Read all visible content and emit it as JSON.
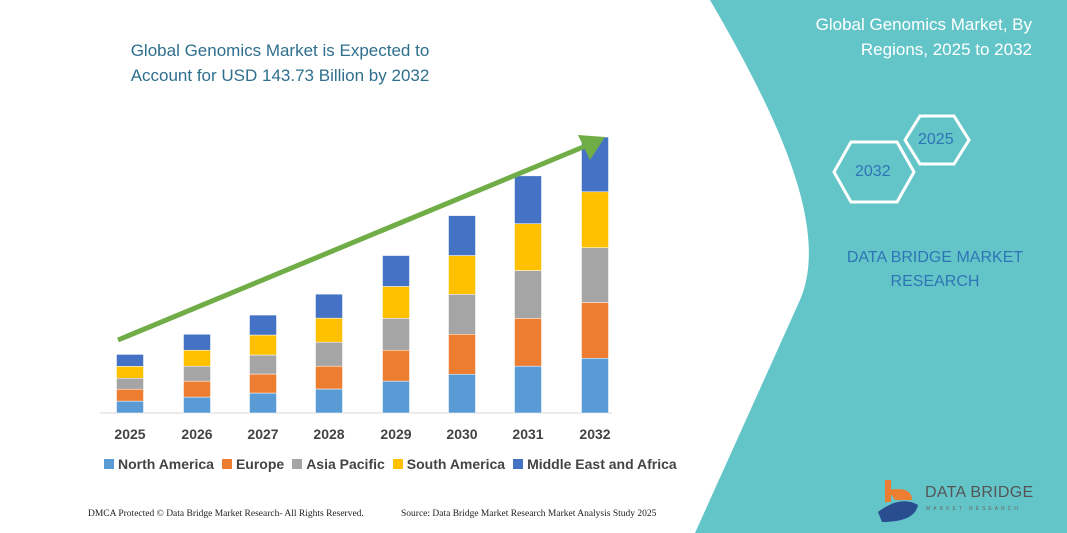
{
  "title": "Global Genomics Market is Expected to Account for USD 143.73 Billion by 2032",
  "side_panel": {
    "title": "Global Genomics Market, By Regions, 2025 to 2032",
    "hex_start": "2025",
    "hex_end": "2032",
    "brand": "DATA BRIDGE MARKET RESEARCH",
    "color": "#64c5c9"
  },
  "logo": {
    "name": "DATA BRIDGE",
    "sub": "MARKET RESEARCH"
  },
  "footer": {
    "left": "DMCA Protected © Data Bridge Market Research-  All Rights Reserved.",
    "right": "Source: Data Bridge Market Research  Market Analysis Study 2025"
  },
  "chart_data": {
    "type": "bar",
    "stacked": true,
    "title": "Global Genomics Market is Expected to Account for USD 143.73 Billion by 2032",
    "xlabel": "",
    "ylabel": "",
    "categories": [
      "2025",
      "2026",
      "2027",
      "2028",
      "2029",
      "2030",
      "2031",
      "2032"
    ],
    "ylim": [
      0,
      143.73
    ],
    "grid": false,
    "legend_position": "bottom",
    "trend_arrow": true,
    "series": [
      {
        "name": "North America",
        "color": "#5b9bd5",
        "values": [
          6.2,
          8.3,
          10.4,
          12.5,
          16.6,
          20.2,
          24.4,
          28.5
        ]
      },
      {
        "name": "Europe",
        "color": "#ed7d31",
        "values": [
          6.2,
          8.3,
          9.9,
          11.9,
          16.1,
          20.8,
          24.9,
          29.1
        ]
      },
      {
        "name": "Asia Pacific",
        "color": "#a5a5a5",
        "values": [
          5.7,
          7.8,
          9.9,
          12.5,
          16.6,
          20.8,
          24.9,
          28.5
        ]
      },
      {
        "name": "South America",
        "color": "#ffc000",
        "values": [
          6.2,
          8.3,
          10.4,
          12.5,
          16.6,
          20.2,
          24.4,
          29.1
        ]
      },
      {
        "name": "Middle East and Africa",
        "color": "#4472c4",
        "values": [
          6.2,
          8.3,
          10.4,
          12.5,
          16.1,
          20.8,
          24.9,
          28.5
        ]
      }
    ],
    "arrow_color": "#70ad47"
  }
}
